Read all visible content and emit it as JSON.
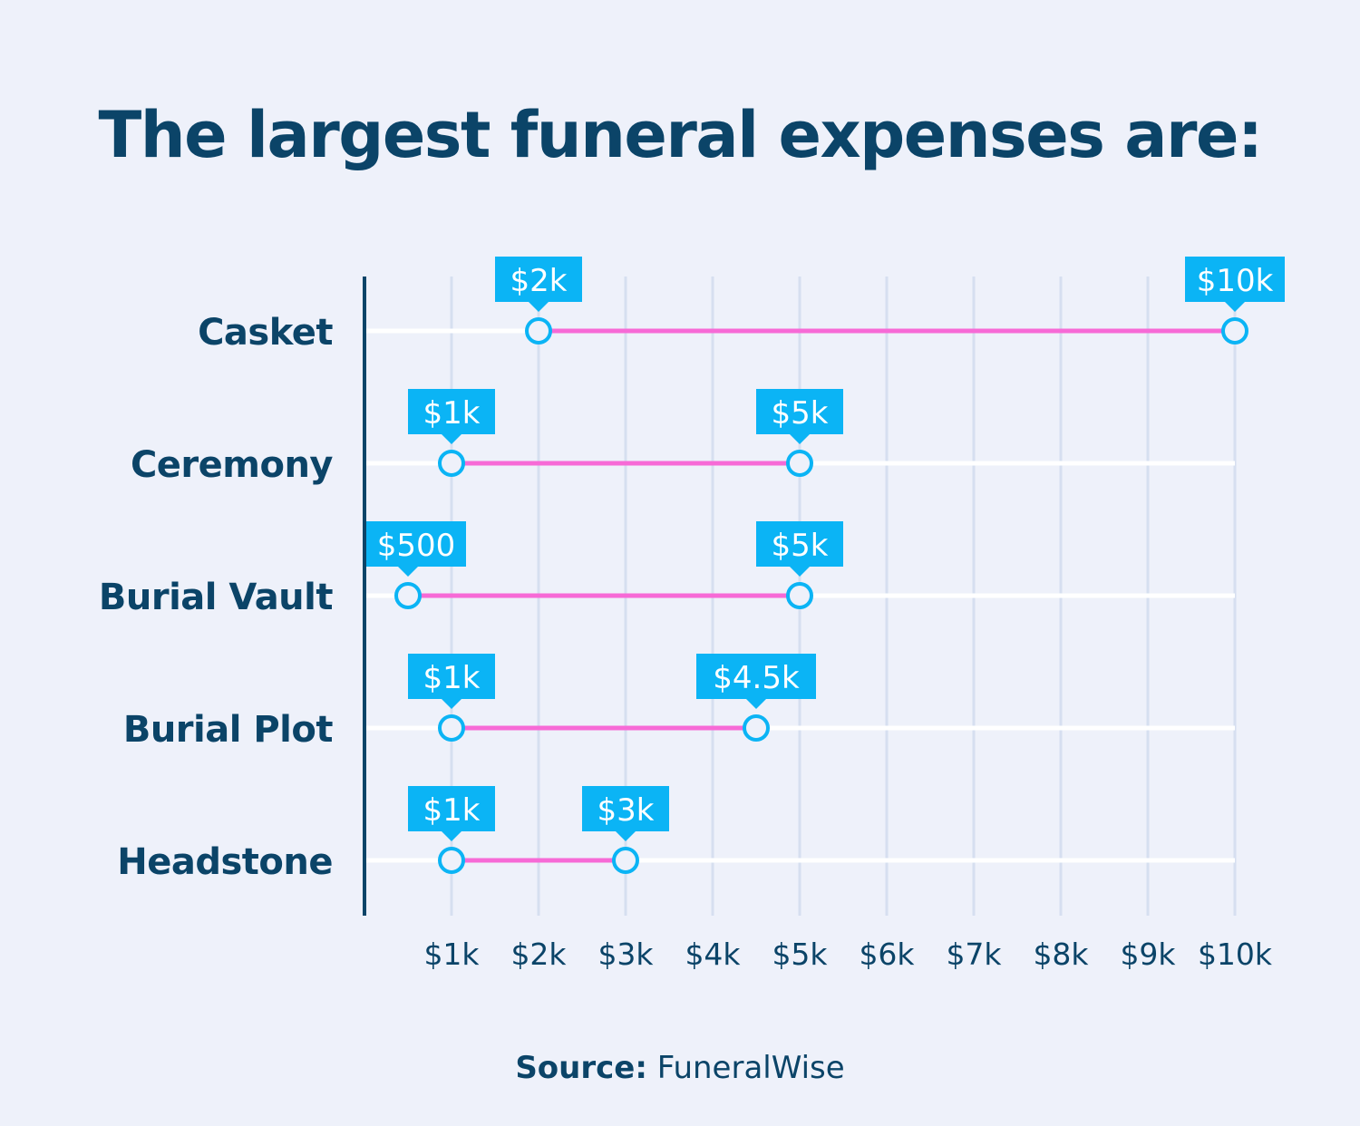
{
  "chart_data": {
    "type": "dumbbell",
    "title": "The largest funeral expenses are:",
    "source_label": "Source:",
    "source": "FuneralWise",
    "categories": [
      "Casket",
      "Ceremony",
      "Burial Vault",
      "Burial Plot",
      "Headstone"
    ],
    "ranges": [
      {
        "category": "Casket",
        "low": 2000,
        "high": 10000,
        "low_label": "$2k",
        "high_label": "$10k"
      },
      {
        "category": "Ceremony",
        "low": 1000,
        "high": 5000,
        "low_label": "$1k",
        "high_label": "$5k"
      },
      {
        "category": "Burial Vault",
        "low": 500,
        "high": 5000,
        "low_label": "$500",
        "high_label": "$5k"
      },
      {
        "category": "Burial Plot",
        "low": 1000,
        "high": 4500,
        "low_label": "$1k",
        "high_label": "$4.5k"
      },
      {
        "category": "Headstone",
        "low": 1000,
        "high": 3000,
        "low_label": "$1k",
        "high_label": "$3k"
      }
    ],
    "x_ticks": [
      1000,
      2000,
      3000,
      4000,
      5000,
      6000,
      7000,
      8000,
      9000,
      10000
    ],
    "x_tick_labels": [
      "$1k",
      "$2k",
      "$3k",
      "$4k",
      "$5k",
      "$6k",
      "$7k",
      "$8k",
      "$9k",
      "$10k"
    ],
    "xlim": [
      0,
      10000
    ],
    "grid": true,
    "colors": {
      "background": "#eef1fa",
      "text": "#0b4468",
      "range_line": "#f76ad6",
      "marker": "#0bb4f5",
      "label_box": "#0bb4f5",
      "grid": "#d6dff0",
      "track": "#ffffff"
    }
  }
}
